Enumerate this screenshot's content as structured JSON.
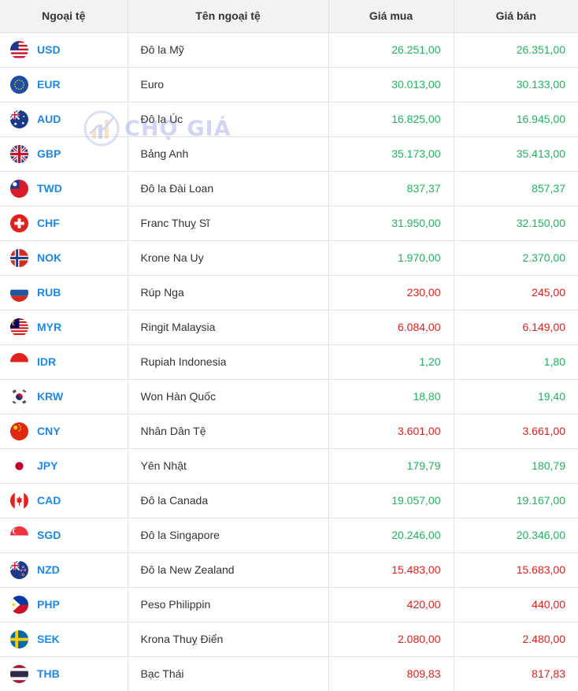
{
  "header": {
    "col_code": "Ngoại tệ",
    "col_name": "Tên ngoại tệ",
    "col_buy": "Giá mua",
    "col_sell": "Giá bán"
  },
  "watermark": {
    "text": "CHỢ GIÁ"
  },
  "colors": {
    "up": "#21b35e",
    "down": "#e0201b",
    "code": "#1e88e5"
  },
  "rows": [
    {
      "code": "USD",
      "name": "Đô la Mỹ",
      "buy": "26.251,00",
      "sell": "26.351,00",
      "trend": "up",
      "flag": "us-flag-icon"
    },
    {
      "code": "EUR",
      "name": "Euro",
      "buy": "30.013,00",
      "sell": "30.133,00",
      "trend": "up",
      "flag": "eu-flag-icon"
    },
    {
      "code": "AUD",
      "name": "Đô la Úc",
      "buy": "16.825,00",
      "sell": "16.945,00",
      "trend": "up",
      "flag": "au-flag-icon"
    },
    {
      "code": "GBP",
      "name": "Bảng Anh",
      "buy": "35.173,00",
      "sell": "35.413,00",
      "trend": "up",
      "flag": "gb-flag-icon"
    },
    {
      "code": "TWD",
      "name": "Đô la Đài Loan",
      "buy": "837,37",
      "sell": "857,37",
      "trend": "up",
      "flag": "tw-flag-icon"
    },
    {
      "code": "CHF",
      "name": "Franc Thuỵ Sĩ",
      "buy": "31.950,00",
      "sell": "32.150,00",
      "trend": "up",
      "flag": "ch-flag-icon"
    },
    {
      "code": "NOK",
      "name": "Krone Na Uy",
      "buy": "1.970,00",
      "sell": "2.370,00",
      "trend": "up",
      "flag": "no-flag-icon"
    },
    {
      "code": "RUB",
      "name": "Rúp Nga",
      "buy": "230,00",
      "sell": "245,00",
      "trend": "down",
      "flag": "ru-flag-icon"
    },
    {
      "code": "MYR",
      "name": "Ringit Malaysia",
      "buy": "6.084,00",
      "sell": "6.149,00",
      "trend": "down",
      "flag": "my-flag-icon"
    },
    {
      "code": "IDR",
      "name": "Rupiah Indonesia",
      "buy": "1,20",
      "sell": "1,80",
      "trend": "up",
      "flag": "id-flag-icon"
    },
    {
      "code": "KRW",
      "name": "Won Hàn Quốc",
      "buy": "18,80",
      "sell": "19,40",
      "trend": "up",
      "flag": "kr-flag-icon"
    },
    {
      "code": "CNY",
      "name": "Nhân Dân Tệ",
      "buy": "3.601,00",
      "sell": "3.661,00",
      "trend": "down",
      "flag": "cn-flag-icon"
    },
    {
      "code": "JPY",
      "name": "Yên Nhật",
      "buy": "179,79",
      "sell": "180,79",
      "trend": "up",
      "flag": "jp-flag-icon"
    },
    {
      "code": "CAD",
      "name": "Đô la Canada",
      "buy": "19.057,00",
      "sell": "19.167,00",
      "trend": "up",
      "flag": "ca-flag-icon"
    },
    {
      "code": "SGD",
      "name": "Đô la Singapore",
      "buy": "20.246,00",
      "sell": "20.346,00",
      "trend": "up",
      "flag": "sg-flag-icon"
    },
    {
      "code": "NZD",
      "name": "Đô la New Zealand",
      "buy": "15.483,00",
      "sell": "15.683,00",
      "trend": "down",
      "flag": "nz-flag-icon"
    },
    {
      "code": "PHP",
      "name": "Peso Philippin",
      "buy": "420,00",
      "sell": "440,00",
      "trend": "down",
      "flag": "ph-flag-icon"
    },
    {
      "code": "SEK",
      "name": "Krona Thuỵ Điển",
      "buy": "2.080,00",
      "sell": "2.480,00",
      "trend": "down",
      "flag": "se-flag-icon"
    },
    {
      "code": "THB",
      "name": "Bạc Thái",
      "buy": "809,83",
      "sell": "817,83",
      "trend": "down",
      "flag": "th-flag-icon"
    }
  ]
}
